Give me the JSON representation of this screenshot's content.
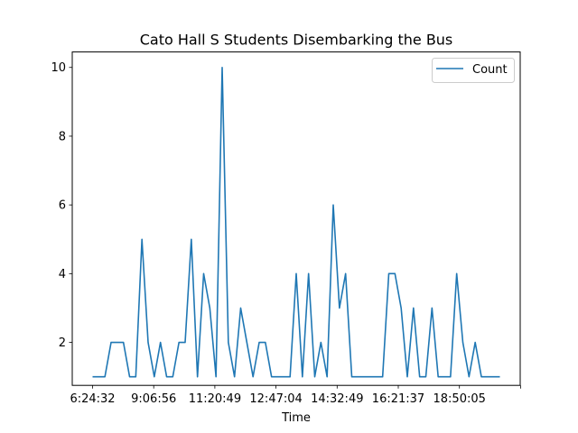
{
  "chart_data": {
    "type": "line",
    "title": "Cato Hall S Students Disembarking the Bus",
    "xlabel": "Time",
    "ylabel": "",
    "x_tick_labels": [
      "6:24:32",
      "9:06:56",
      "11:20:49",
      "12:47:04",
      "14:32:49",
      "16:21:37",
      "18:50:05",
      ""
    ],
    "y_ticks": [
      2,
      4,
      6,
      8,
      10
    ],
    "ylim": [
      0.75,
      10.45
    ],
    "legend": "top-right",
    "grid": false,
    "series": [
      {
        "name": "Count",
        "color": "#1f77b4",
        "values": [
          1,
          1,
          1,
          2,
          2,
          2,
          1,
          1,
          5,
          2,
          1,
          2,
          1,
          1,
          2,
          2,
          5,
          1,
          4,
          3,
          1,
          10,
          2,
          1,
          3,
          2,
          1,
          2,
          2,
          1,
          1,
          1,
          1,
          4,
          1,
          4,
          1,
          2,
          1,
          6,
          3,
          4,
          1,
          1,
          1,
          1,
          1,
          1,
          4,
          4,
          3,
          1,
          3,
          1,
          1,
          3,
          1,
          1,
          1,
          4,
          2,
          1,
          2,
          1,
          1,
          1,
          1
        ]
      }
    ]
  }
}
